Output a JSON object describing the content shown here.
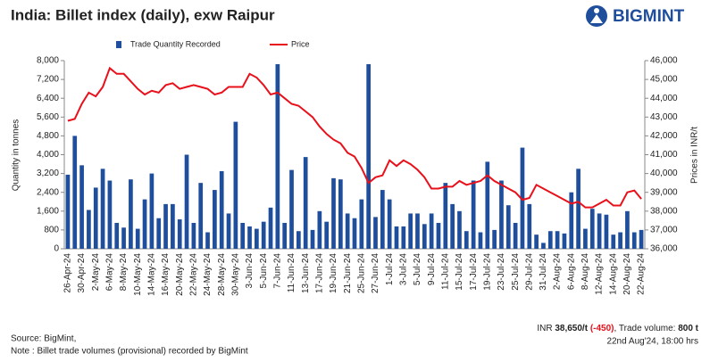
{
  "logo": "BIGMINT",
  "chart_data": {
    "type": "bar_line",
    "title": "India: Billet index (daily), exw Raipur",
    "y_label": "Quantity in tonnes",
    "y2_label": "Prices in INR/t",
    "categories": [
      "26-Apr-24",
      null,
      "30-Apr-24",
      null,
      "2-May-24",
      null,
      "6-May-24",
      null,
      "8-May-24",
      null,
      "10-May-24",
      null,
      "14-May-24",
      null,
      "16-May-24",
      null,
      "20-May-24",
      null,
      "22-May-24",
      null,
      "24-May-24",
      null,
      "28-May-24",
      null,
      "30-May-24",
      null,
      "3-Jun-24",
      null,
      "5-Jun-24",
      null,
      "7-Jun-24",
      null,
      "11-Jun-24",
      null,
      "13-Jun-24",
      null,
      "17-Jun-24",
      null,
      "19-Jun-24",
      null,
      "21-Jun-24",
      null,
      "25-Jun-24",
      null,
      "27-Jun-24",
      null,
      "1-Jul-24",
      null,
      "3-Jul-24",
      null,
      "5-Jul-24",
      null,
      "9-Jul-24",
      null,
      "11-Jul-24",
      null,
      "15-Jul-24",
      null,
      "17-Jul-24",
      null,
      "19-Jul-24",
      null,
      "23-Jul-24",
      null,
      "25-Jul-24",
      null,
      "29-Jul-24",
      null,
      "31-Jul-24",
      null,
      "2-Aug-24",
      null,
      "6-Aug-24",
      null,
      "8-Aug-24",
      null,
      "12-Aug-24",
      null,
      "14-Aug-24",
      null,
      "20-Aug-24",
      null,
      "22-Aug-24"
    ],
    "series": [
      {
        "name": "Trade Quantity Recorded",
        "color": "#1f4e9c",
        "kind": "bar",
        "values": [
          3150,
          4800,
          3550,
          1650,
          2600,
          3400,
          2900,
          1100,
          900,
          2950,
          850,
          2100,
          3200,
          1300,
          1900,
          1900,
          1250,
          4000,
          1100,
          2800,
          700,
          2500,
          3300,
          1500,
          5400,
          1100,
          950,
          850,
          1150,
          1750,
          7850,
          1100,
          3350,
          750,
          3900,
          800,
          1600,
          1150,
          3000,
          2950,
          1500,
          1300,
          2100,
          7850,
          1350,
          2500,
          2100,
          950,
          950,
          1500,
          1500,
          1050,
          1500,
          1100,
          2800,
          1900,
          1600,
          750,
          2900,
          700,
          3700,
          800,
          2900,
          1850,
          1100,
          4300,
          1900,
          600,
          250,
          750,
          750,
          650,
          2400,
          3400,
          850,
          1700,
          1500,
          1450,
          600,
          700,
          1600,
          700,
          800
        ]
      },
      {
        "name": "Price",
        "color": "#e8101a",
        "kind": "line",
        "axis": "y2",
        "values": [
          42800,
          42900,
          43700,
          44300,
          44100,
          44600,
          45600,
          45300,
          45300,
          44900,
          44500,
          44200,
          44400,
          44300,
          44700,
          44800,
          44500,
          44600,
          44700,
          44600,
          44500,
          44200,
          44300,
          44600,
          44600,
          44600,
          45300,
          45100,
          44700,
          44200,
          44300,
          44000,
          43700,
          43600,
          43300,
          43000,
          42500,
          42100,
          41800,
          41600,
          41100,
          40900,
          40300,
          39500,
          39800,
          39900,
          40700,
          40400,
          40700,
          40500,
          40200,
          39800,
          39200,
          39200,
          39300,
          39300,
          39600,
          39400,
          39500,
          39600,
          39900,
          39600,
          39400,
          39200,
          39000,
          38600,
          38700,
          39400,
          39200,
          39000,
          38800,
          38600,
          38400,
          38500,
          38200,
          38200,
          38400,
          38600,
          38300,
          38300,
          39000,
          39100,
          38650
        ]
      }
    ],
    "ylim": [
      0,
      8000
    ],
    "yticks": [
      0,
      {
        "value": 800,
        "label": "800"
      },
      {
        "value": 1600,
        "label": "1,600"
      },
      {
        "value": 2400,
        "label": "2,400"
      },
      {
        "value": 3200,
        "label": "3,200"
      },
      {
        "value": 4000,
        "label": "4,000"
      },
      {
        "value": 4800,
        "label": "4,800"
      },
      {
        "value": 5600,
        "label": "5,600"
      },
      {
        "value": 6400,
        "label": "6,400"
      },
      {
        "value": 7200,
        "label": "7,200"
      },
      {
        "value": 8000,
        "label": "8,000"
      }
    ],
    "y2lim": [
      36000,
      46000
    ],
    "y2ticks": [
      {
        "value": 36000,
        "label": "36,000"
      },
      {
        "value": 37000,
        "label": "37,000"
      },
      {
        "value": 38000,
        "label": "38,000"
      },
      {
        "value": 39000,
        "label": "39,000"
      },
      {
        "value": 40000,
        "label": "40,000"
      },
      {
        "value": 41000,
        "label": "41,000"
      },
      {
        "value": 42000,
        "label": "42,000"
      },
      {
        "value": 43000,
        "label": "43,000"
      },
      {
        "value": 44000,
        "label": "44,000"
      },
      {
        "value": 45000,
        "label": "45,000"
      },
      {
        "value": 46000,
        "label": "46,000"
      }
    ],
    "legend": "top"
  },
  "footer": {
    "source": "Source: BigMint,",
    "note": "Note : Billet trade volumes (provisional) recorded by BigMint",
    "summary": [
      "INR ",
      "38,650/t",
      " (-450)",
      ", Trade volume: ",
      "800 t"
    ],
    "timestamp": "22nd Aug'24, 18:00 hrs"
  }
}
